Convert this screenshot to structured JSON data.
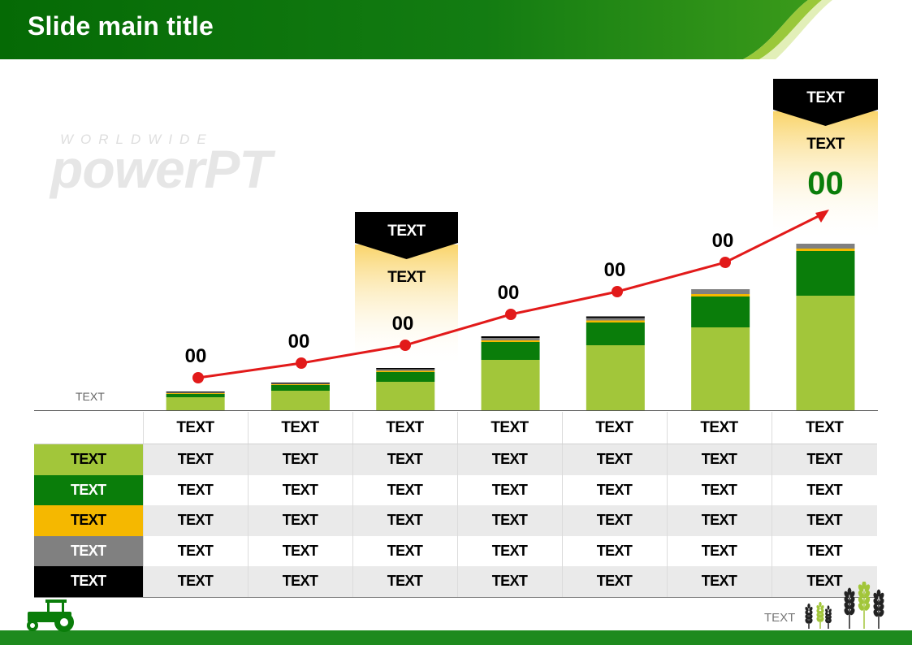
{
  "header": {
    "title": "Slide main title"
  },
  "watermark": {
    "line1": "WORLDWIDE",
    "line2": "powerPT"
  },
  "colors": {
    "light_green": "#a2c63a",
    "green": "#0a7d0a",
    "orange": "#f5b800",
    "gray": "#808080",
    "black": "#000000",
    "trend": "#e21a1a",
    "header_green": "#0a6e0a"
  },
  "chart_data": {
    "type": "bar",
    "stacked": true,
    "axis_label": "TEXT",
    "categories": [
      "TEXT",
      "TEXT",
      "TEXT",
      "TEXT",
      "TEXT",
      "TEXT",
      "TEXT"
    ],
    "series": [
      {
        "name": "TEXT",
        "color": "#a2c63a",
        "values": [
          16,
          24,
          35,
          62,
          80,
          102,
          141
        ]
      },
      {
        "name": "TEXT",
        "color": "#0a7d0a",
        "values": [
          4,
          7,
          12,
          22,
          28,
          38,
          55
        ]
      },
      {
        "name": "TEXT",
        "color": "#f5b800",
        "values": [
          1,
          1,
          1.5,
          2,
          2.5,
          3,
          3
        ]
      },
      {
        "name": "TEXT",
        "color": "#808080",
        "values": [
          1,
          1,
          2,
          3,
          3,
          6,
          6
        ]
      },
      {
        "name": "TEXT",
        "color": "#000000",
        "values": [
          1,
          1,
          1.5,
          2,
          2,
          0,
          0
        ]
      }
    ],
    "trend_line": {
      "label_values": [
        "00",
        "00",
        "00",
        "00",
        "00",
        "00"
      ],
      "arrow": true
    },
    "callouts": [
      {
        "category_index": 2,
        "tag": "TEXT",
        "text": "TEXT",
        "value": "00"
      },
      {
        "category_index": 6,
        "tag": "TEXT",
        "text": "TEXT",
        "value": "00"
      }
    ]
  },
  "table": {
    "rows": [
      {
        "label": "TEXT",
        "cells": [
          "TEXT",
          "TEXT",
          "TEXT",
          "TEXT",
          "TEXT",
          "TEXT",
          "TEXT"
        ]
      },
      {
        "label": "TEXT",
        "cells": [
          "TEXT",
          "TEXT",
          "TEXT",
          "TEXT",
          "TEXT",
          "TEXT",
          "TEXT"
        ]
      },
      {
        "label": "TEXT",
        "cells": [
          "TEXT",
          "TEXT",
          "TEXT",
          "TEXT",
          "TEXT",
          "TEXT",
          "TEXT"
        ]
      },
      {
        "label": "TEXT",
        "cells": [
          "TEXT",
          "TEXT",
          "TEXT",
          "TEXT",
          "TEXT",
          "TEXT",
          "TEXT"
        ]
      },
      {
        "label": "TEXT",
        "cells": [
          "TEXT",
          "TEXT",
          "TEXT",
          "TEXT",
          "TEXT",
          "TEXT",
          "TEXT"
        ]
      }
    ]
  },
  "footer": {
    "text": "TEXT"
  }
}
